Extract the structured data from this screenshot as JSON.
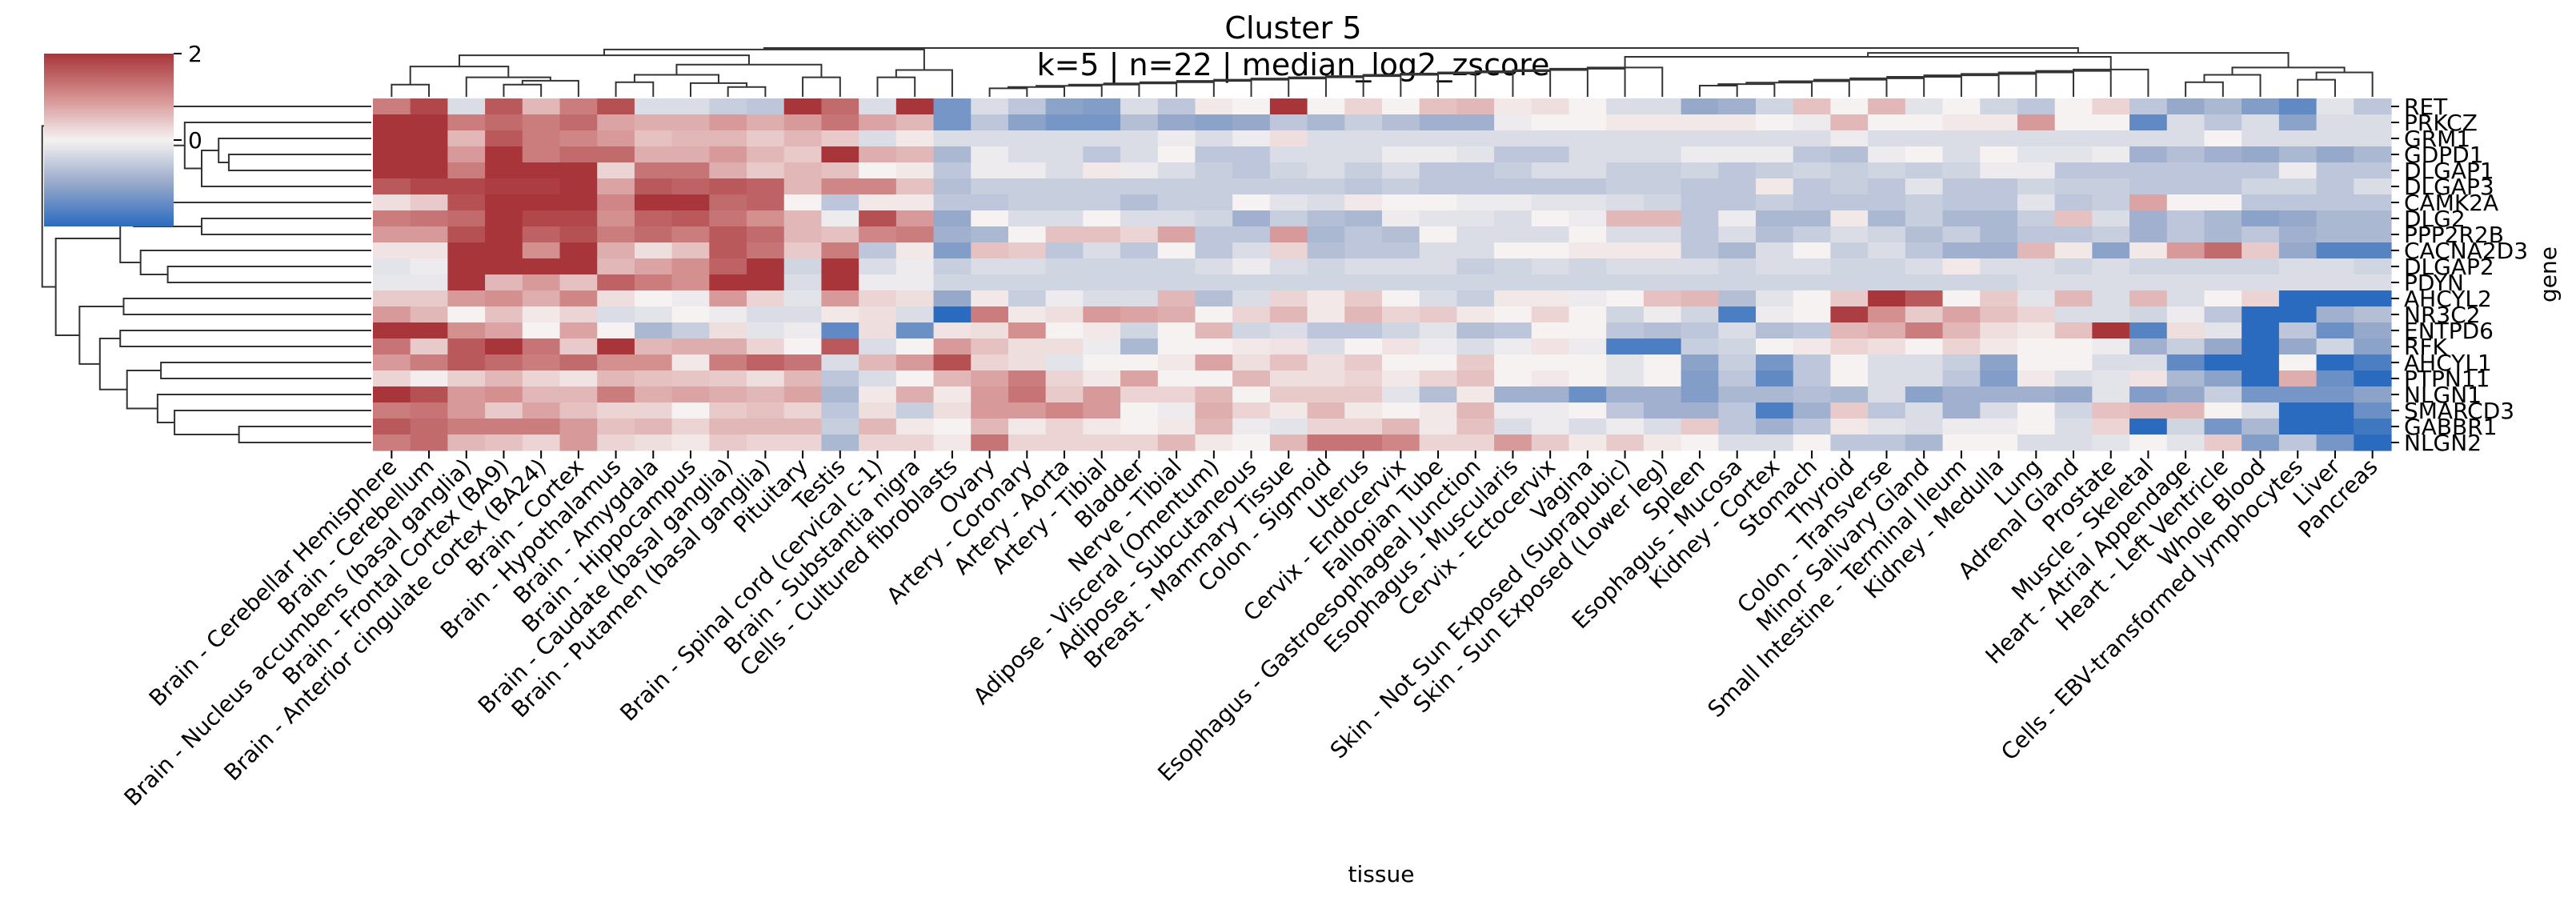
{
  "chart_data": {
    "type": "heatmap",
    "title": "Cluster 5",
    "subtitle": "k=5 | n=22 | median_log2_zscore",
    "xlabel": "tissue",
    "ylabel": "gene",
    "colorbar": {
      "range": [
        -2,
        2
      ],
      "ticks": [
        {
          "value": 2,
          "label": "2"
        },
        {
          "value": 0,
          "label": "0"
        }
      ],
      "colormap": "vlag",
      "low_color": "#2a6bbf",
      "mid_color": "#f6f2f2",
      "high_color": "#a8353a",
      "placement": "top-left"
    },
    "dendrograms": {
      "rows": true,
      "columns": true
    },
    "columns": [
      "Brain - Cerebellar Hemisphere",
      "Brain - Cerebellum",
      "Brain - Nucleus accumbens (basal ganglia)",
      "Brain - Frontal Cortex (BA9)",
      "Brain - Anterior cingulate cortex (BA24)",
      "Brain - Cortex",
      "Brain - Hypothalamus",
      "Brain - Amygdala",
      "Brain - Hippocampus",
      "Brain - Caudate (basal ganglia)",
      "Brain - Putamen (basal ganglia)",
      "Pituitary",
      "Testis",
      "Brain - Spinal cord (cervical c-1)",
      "Brain - Substantia nigra",
      "Cells - Cultured fibroblasts",
      "Ovary",
      "Artery - Coronary",
      "Artery - Aorta",
      "Artery - Tibial",
      "Bladder",
      "Nerve - Tibial",
      "Adipose - Visceral (Omentum)",
      "Adipose - Subcutaneous",
      "Breast - Mammary Tissue",
      "Colon - Sigmoid",
      "Uterus",
      "Cervix - Endocervix",
      "Fallopian Tube",
      "Esophagus - Gastroesophageal Junction",
      "Esophagus - Muscularis",
      "Cervix - Ectocervix",
      "Vagina",
      "Skin - Not Sun Exposed (Suprapubic)",
      "Skin - Sun Exposed (Lower leg)",
      "Spleen",
      "Esophagus - Mucosa",
      "Kidney - Cortex",
      "Stomach",
      "Thyroid",
      "Colon - Transverse",
      "Minor Salivary Gland",
      "Small Intestine - Terminal Ileum",
      "Kidney - Medulla",
      "Lung",
      "Adrenal Gland",
      "Prostate",
      "Muscle - Skeletal",
      "Heart - Atrial Appendage",
      "Heart - Left Ventricle",
      "Whole Blood",
      "Cells - EBV-transformed lymphocytes",
      "Liver",
      "Pancreas"
    ],
    "rows": [
      "RET",
      "PRKCZ",
      "GRM1",
      "GDPD1",
      "DLGAP1",
      "DLGAP3",
      "CAMK2A",
      "DLG2",
      "PPP2R2B",
      "CACNA2D3",
      "DLGAP2",
      "PDYN",
      "AHCYL2",
      "NR3C2",
      "ENTPD6",
      "RFK",
      "AHCYL1",
      "PTPN11",
      "NLGN1",
      "SMARCD3",
      "GABBR1",
      "NLGN2"
    ],
    "values": [
      [
        1.2,
        1.8,
        -0.3,
        1.6,
        0.6,
        1.2,
        1.7,
        -0.3,
        -0.3,
        -0.5,
        -0.6,
        2.0,
        1.4,
        -0.3,
        2.0,
        -1.3,
        -0.3,
        -0.6,
        -1.1,
        -1.2,
        -0.3,
        -0.6,
        0.1,
        0.0,
        2.0,
        0.0,
        0.3,
        0.0,
        0.5,
        0.6,
        0.1,
        0.2,
        0.0,
        -0.3,
        -0.3,
        -1.0,
        -0.9,
        -0.4,
        0.5,
        0.0,
        0.6,
        -0.2,
        0.0,
        -0.4,
        -0.6,
        0.0,
        0.3,
        -0.6,
        -1.0,
        -0.8,
        -1.2,
        -1.5,
        -0.2,
        -0.6
      ],
      [
        2.0,
        2.0,
        1.2,
        1.4,
        1.2,
        1.4,
        0.8,
        0.7,
        0.7,
        0.9,
        0.7,
        0.9,
        1.3,
        0.8,
        0.6,
        -1.3,
        -0.6,
        -1.1,
        -1.3,
        -1.3,
        -0.7,
        -1.0,
        -1.1,
        -1.0,
        -0.6,
        -0.8,
        -0.5,
        -0.7,
        -0.9,
        -0.9,
        -0.1,
        0.0,
        0.0,
        0.1,
        0.1,
        0.1,
        0.1,
        0.0,
        -0.1,
        0.6,
        0.0,
        0.0,
        0.1,
        0.1,
        0.9,
        0.0,
        0.0,
        -1.5,
        -0.3,
        -0.6,
        -0.3,
        -1.1,
        -0.3,
        -0.3
      ],
      [
        2.0,
        2.0,
        0.6,
        1.6,
        1.2,
        1.1,
        0.9,
        0.5,
        0.6,
        0.6,
        0.4,
        0.6,
        0.4,
        -0.3,
        0.1,
        -0.3,
        -0.3,
        -0.3,
        -0.3,
        -0.3,
        -0.3,
        -0.1,
        -0.3,
        -0.1,
        0.2,
        -0.3,
        -0.3,
        -0.3,
        -0.3,
        -0.3,
        -0.3,
        -0.3,
        -0.3,
        -0.3,
        -0.3,
        -0.3,
        -0.3,
        -0.3,
        -0.3,
        -0.1,
        -0.3,
        -0.3,
        -0.3,
        -0.3,
        -0.3,
        -0.3,
        -0.3,
        -0.3,
        -0.3,
        0.0,
        -0.3,
        -0.3,
        -0.3,
        -0.3
      ],
      [
        2.0,
        2.0,
        0.9,
        2.0,
        1.2,
        1.4,
        1.4,
        0.7,
        0.7,
        0.9,
        0.6,
        0.4,
        2.0,
        0.7,
        0.6,
        -0.8,
        -0.1,
        -0.3,
        -0.3,
        -0.6,
        -0.3,
        0.0,
        -0.6,
        -0.6,
        -0.3,
        -0.3,
        -0.3,
        -0.1,
        -0.1,
        -0.2,
        -0.6,
        -0.6,
        -0.3,
        -0.3,
        -0.3,
        -0.1,
        -0.1,
        -0.1,
        -0.6,
        -0.7,
        -0.1,
        0.0,
        -0.3,
        0.0,
        -0.2,
        -0.2,
        -0.1,
        -0.9,
        -0.7,
        -0.9,
        -1.0,
        -0.8,
        -1.0,
        -0.8
      ],
      [
        2.0,
        2.0,
        1.2,
        2.0,
        2.0,
        2.0,
        0.3,
        1.3,
        1.3,
        0.7,
        0.4,
        0.6,
        0.5,
        0.0,
        0.1,
        -0.6,
        -0.1,
        -0.1,
        -0.3,
        0.1,
        -0.1,
        -0.3,
        -0.5,
        -0.6,
        -0.4,
        -0.3,
        -0.5,
        -0.3,
        -0.6,
        -0.6,
        -0.5,
        -0.3,
        -0.3,
        -0.5,
        -0.5,
        -0.4,
        -0.6,
        -0.5,
        -0.4,
        -0.5,
        -0.4,
        -0.5,
        -0.4,
        -0.1,
        -0.1,
        -0.6,
        -0.6,
        -0.6,
        -0.6,
        -0.6,
        -0.6,
        -0.1,
        -0.6,
        -0.6
      ],
      [
        1.6,
        1.8,
        1.8,
        1.9,
        1.9,
        2.0,
        0.8,
        1.6,
        1.5,
        1.6,
        1.5,
        0.6,
        1.1,
        1.1,
        0.5,
        -0.7,
        -0.5,
        -0.5,
        -0.5,
        -0.5,
        -0.5,
        -0.5,
        -0.5,
        -0.5,
        -0.5,
        -0.5,
        -0.6,
        -0.5,
        -0.6,
        -0.6,
        -0.6,
        -0.6,
        -0.6,
        -0.5,
        -0.5,
        -0.6,
        -0.6,
        0.1,
        -0.6,
        -0.5,
        -0.6,
        -0.2,
        -0.6,
        -0.6,
        -0.4,
        -0.5,
        -0.5,
        -0.6,
        -0.6,
        -0.6,
        -0.4,
        -0.4,
        -0.6,
        -0.3
      ],
      [
        0.2,
        0.4,
        1.7,
        2.0,
        2.0,
        2.0,
        1.1,
        2.0,
        2.0,
        1.4,
        1.5,
        0.0,
        -0.6,
        0.1,
        0.1,
        -0.6,
        -0.6,
        -0.5,
        -0.5,
        -0.5,
        -0.7,
        -0.5,
        -0.5,
        0.0,
        -0.2,
        -0.3,
        0.1,
        0.0,
        0.0,
        -0.1,
        -0.1,
        -0.2,
        -0.2,
        -0.3,
        -0.4,
        -0.6,
        -0.6,
        -0.5,
        -0.6,
        -0.6,
        -0.6,
        -0.5,
        -0.6,
        -0.6,
        -0.2,
        -0.6,
        -0.5,
        0.8,
        0.0,
        0.0,
        -0.6,
        -0.6,
        -0.6,
        -0.6
      ],
      [
        1.2,
        1.3,
        1.4,
        2.0,
        1.8,
        1.8,
        1.0,
        1.5,
        1.6,
        1.3,
        1.0,
        0.6,
        -0.1,
        1.7,
        0.9,
        -1.0,
        0.0,
        -0.3,
        -0.3,
        0.0,
        -0.3,
        -0.3,
        -0.4,
        -0.9,
        -0.5,
        -0.7,
        -0.8,
        -0.1,
        -0.2,
        -0.2,
        -0.3,
        0.0,
        -0.1,
        0.6,
        0.6,
        -0.6,
        -0.1,
        -0.8,
        -0.8,
        0.1,
        -0.8,
        -0.5,
        -0.8,
        -0.8,
        -0.5,
        0.5,
        -0.3,
        -0.9,
        -0.6,
        -0.8,
        -1.1,
        -1.0,
        -0.8,
        -0.8
      ],
      [
        0.9,
        0.9,
        1.7,
        2.0,
        1.5,
        1.7,
        1.2,
        1.4,
        1.2,
        1.6,
        1.4,
        0.6,
        0.5,
        1.1,
        1.2,
        -0.9,
        -0.8,
        0.0,
        0.5,
        0.5,
        0.3,
        0.8,
        -0.6,
        -0.6,
        0.9,
        -0.8,
        -0.6,
        -0.7,
        0.0,
        -0.3,
        -0.3,
        -0.3,
        0.0,
        -0.3,
        -0.3,
        -0.6,
        -0.3,
        -0.7,
        -0.5,
        -0.3,
        -0.4,
        -0.7,
        -0.5,
        -0.8,
        -0.6,
        -0.6,
        -0.5,
        -0.9,
        -0.6,
        -0.8,
        -0.6,
        -0.9,
        -0.8,
        -0.8
      ],
      [
        0.15,
        0.15,
        2.0,
        2.0,
        1.0,
        2.0,
        0.7,
        0.2,
        0.5,
        1.6,
        1.3,
        0.4,
        1.2,
        -0.6,
        0.1,
        -1.2,
        0.5,
        0.4,
        -0.6,
        -0.3,
        -0.6,
        0.0,
        -0.6,
        -0.3,
        0.3,
        -0.7,
        -0.6,
        -0.6,
        -0.3,
        -0.3,
        0.0,
        0.0,
        0.1,
        0.1,
        0.1,
        -0.6,
        -0.8,
        -0.3,
        0.0,
        -0.5,
        -0.3,
        -0.6,
        -0.9,
        -0.9,
        0.6,
        0.1,
        -1.1,
        0.1,
        0.9,
        1.4,
        0.4,
        -1.0,
        -1.6,
        -1.6
      ],
      [
        -0.2,
        -0.1,
        2.0,
        2.0,
        2.0,
        2.0,
        0.6,
        0.8,
        1.0,
        1.5,
        2.0,
        -0.4,
        2.0,
        -0.3,
        -0.1,
        -0.5,
        -0.3,
        -0.3,
        -0.4,
        -0.4,
        -0.4,
        -0.4,
        -0.3,
        -0.1,
        -0.3,
        -0.4,
        -0.3,
        -0.3,
        -0.3,
        -0.5,
        -0.4,
        -0.3,
        -0.4,
        -0.3,
        -0.3,
        -0.3,
        -0.4,
        -0.3,
        -0.3,
        -0.4,
        -0.4,
        -0.3,
        0.1,
        -0.3,
        -0.3,
        -0.4,
        -0.3,
        -0.4,
        -0.4,
        -0.4,
        -0.4,
        -0.3,
        -0.3,
        -0.4
      ],
      [
        -0.15,
        -0.15,
        2.0,
        0.6,
        0.9,
        0.5,
        1.5,
        1.2,
        1.0,
        2.0,
        2.0,
        -0.3,
        2.0,
        -0.1,
        -0.1,
        -0.4,
        -0.4,
        -0.4,
        -0.4,
        -0.4,
        -0.4,
        -0.4,
        -0.4,
        -0.4,
        -0.4,
        -0.4,
        -0.4,
        -0.4,
        -0.4,
        -0.4,
        -0.4,
        -0.4,
        -0.4,
        -0.4,
        -0.4,
        -0.4,
        -0.4,
        -0.4,
        -0.4,
        -0.4,
        -0.4,
        -0.4,
        -0.4,
        -0.4,
        -0.3,
        -0.3,
        -0.3,
        -0.3,
        -0.3,
        -0.3,
        -0.3,
        -0.3,
        -0.3,
        -0.3
      ],
      [
        0.4,
        0.4,
        0.9,
        1.0,
        0.7,
        1.1,
        0.2,
        0.0,
        -0.1,
        0.9,
        0.3,
        -0.2,
        0.9,
        0.3,
        0.2,
        -1.0,
        0.1,
        -0.5,
        -0.1,
        -0.3,
        -0.3,
        0.6,
        -0.7,
        -0.3,
        0.3,
        0.1,
        0.4,
        0.0,
        -0.3,
        -0.5,
        0.1,
        0.1,
        -0.1,
        0.0,
        0.5,
        0.6,
        -0.7,
        -0.2,
        0.0,
        0.4,
        2.0,
        1.6,
        0.0,
        0.4,
        -0.2,
        0.6,
        -0.3,
        0.6,
        -0.3,
        0.0,
        0.3,
        -2.0,
        -2.0,
        -2.0
      ],
      [
        0.9,
        0.6,
        0.0,
        0.5,
        0.1,
        0.3,
        -0.3,
        -0.2,
        0.0,
        -0.1,
        -0.3,
        -0.3,
        0.1,
        0.2,
        -0.3,
        -2.0,
        1.2,
        0.1,
        0.2,
        0.9,
        0.8,
        0.7,
        0.0,
        0.3,
        0.6,
        0.1,
        0.6,
        0.3,
        0.4,
        0.1,
        0.0,
        0.3,
        0.0,
        -0.4,
        -0.1,
        -0.4,
        -1.7,
        -0.1,
        0.0,
        1.9,
        1.0,
        0.4,
        0.8,
        0.5,
        0.3,
        -0.3,
        -0.3,
        -0.4,
        -0.1,
        -0.6,
        -2.0,
        -2.0,
        -0.9,
        -0.7
      ],
      [
        2.0,
        2.0,
        1.0,
        0.8,
        0.0,
        0.8,
        0.0,
        -0.8,
        -0.5,
        0.2,
        -0.2,
        -0.1,
        -1.5,
        0.2,
        -1.4,
        0.15,
        0.2,
        1.0,
        0.0,
        0.1,
        -0.4,
        0.0,
        0.6,
        -0.4,
        -0.3,
        -0.6,
        -0.6,
        -0.4,
        -0.2,
        -0.7,
        -0.6,
        0.0,
        0.0,
        -0.6,
        -0.7,
        -0.6,
        -0.3,
        -0.7,
        -0.6,
        0.6,
        0.7,
        1.2,
        0.6,
        0.2,
        0.1,
        0.5,
        2.0,
        -1.6,
        0.2,
        -0.2,
        -2.0,
        -0.6,
        -1.4,
        -1.0
      ],
      [
        1.3,
        0.4,
        1.6,
        2.0,
        1.3,
        0.4,
        2.0,
        0.6,
        0.7,
        0.7,
        0.3,
        0.0,
        1.6,
        -0.3,
        0.0,
        0.9,
        0.5,
        0.2,
        0.2,
        -0.1,
        -0.8,
        0.0,
        0.0,
        0.1,
        0.15,
        -0.3,
        0.0,
        0.15,
        -0.1,
        -0.3,
        -0.1,
        0.15,
        -0.1,
        -1.7,
        -1.7,
        -0.5,
        -0.4,
        0.0,
        0.1,
        0.3,
        0.2,
        0.0,
        0.3,
        0.1,
        0.0,
        0.0,
        -0.1,
        -0.9,
        -0.5,
        -1.0,
        -2.0,
        -1.0,
        -0.4,
        -1.1
      ],
      [
        0.9,
        1.2,
        1.6,
        1.4,
        1.2,
        1.4,
        1.0,
        1.0,
        0.1,
        1.2,
        1.5,
        1.3,
        -0.3,
        0.6,
        0.9,
        1.7,
        0.3,
        0.2,
        -0.2,
        0.0,
        0.0,
        0.1,
        0.8,
        0.2,
        0.5,
        0.2,
        0.4,
        0.0,
        0.0,
        0.4,
        0.0,
        0.0,
        0.0,
        -0.2,
        0.0,
        -1.1,
        -0.5,
        -1.3,
        -0.6,
        0.0,
        -0.3,
        -0.3,
        -0.5,
        -1.1,
        0.0,
        0.0,
        -0.3,
        -0.3,
        -1.5,
        -2.0,
        -2.0,
        0.0,
        -2.0,
        -1.7
      ],
      [
        0.3,
        0.05,
        0.35,
        0.6,
        0.3,
        0.15,
        0.6,
        0.5,
        0.45,
        0.4,
        0.2,
        0.6,
        -0.6,
        -0.3,
        0.0,
        0.6,
        0.8,
        1.2,
        0.3,
        0.1,
        0.8,
        0.0,
        0.0,
        0.6,
        0.2,
        0.2,
        0.3,
        0.1,
        0.3,
        0.5,
        0.0,
        0.1,
        0.0,
        -0.2,
        0.0,
        -1.2,
        -0.6,
        -1.5,
        -0.6,
        0.0,
        -0.3,
        -0.3,
        -0.6,
        -1.2,
        0.1,
        -0.3,
        -0.2,
        0.15,
        -0.8,
        -1.1,
        -2.0,
        0.7,
        -1.4,
        -2.0
      ],
      [
        2.0,
        1.7,
        0.9,
        1.0,
        0.6,
        0.6,
        1.2,
        0.7,
        0.8,
        0.7,
        0.6,
        0.8,
        -0.8,
        0.1,
        0.7,
        0.1,
        0.9,
        1.3,
        0.4,
        0.9,
        0.3,
        0.3,
        0.6,
        0.0,
        0.4,
        0.4,
        0.4,
        -0.2,
        -0.7,
        0.1,
        -0.9,
        -0.9,
        -1.4,
        -0.9,
        -0.9,
        -1.2,
        -0.8,
        -0.8,
        -0.7,
        -0.8,
        -0.3,
        -1.1,
        -0.9,
        -0.9,
        -0.9,
        -1.0,
        -0.2,
        -1.2,
        -1.0,
        -0.5,
        -1.3,
        -1.3,
        -1.3,
        -1.1
      ],
      [
        1.2,
        1.3,
        0.9,
        0.4,
        0.8,
        0.5,
        0.3,
        0.3,
        0.0,
        0.4,
        0.5,
        0.3,
        -0.6,
        0.2,
        -0.5,
        0.2,
        0.9,
        0.9,
        1.1,
        0.9,
        0.0,
        -0.1,
        0.7,
        0.3,
        0.1,
        0.6,
        0.1,
        0.0,
        0.1,
        0.6,
        -0.1,
        -0.1,
        0.0,
        -0.6,
        -0.9,
        -0.9,
        -0.6,
        -1.7,
        -0.9,
        0.4,
        -0.6,
        -0.3,
        -0.9,
        -0.3,
        0.0,
        -0.4,
        0.5,
        0.6,
        0.6,
        0.0,
        -0.3,
        -2.0,
        -2.0,
        -1.4
      ],
      [
        1.6,
        1.4,
        1.2,
        1.2,
        1.2,
        0.9,
        0.5,
        0.6,
        0.3,
        0.6,
        0.6,
        0.6,
        -0.5,
        0.6,
        0.1,
        0.0,
        0.6,
        0.1,
        0.3,
        0.1,
        0.0,
        0.1,
        0.6,
        -0.1,
        -0.2,
        0.3,
        0.3,
        0.6,
        0.1,
        0.5,
        -0.3,
        -0.1,
        -0.3,
        -0.1,
        -0.3,
        0.4,
        -0.6,
        -0.9,
        -0.6,
        0.1,
        -0.2,
        -0.3,
        -0.1,
        -0.1,
        0.0,
        -0.3,
        0.3,
        -2.0,
        -0.4,
        -1.3,
        -0.8,
        -2.0,
        -2.0,
        -1.8
      ],
      [
        1.2,
        1.4,
        0.6,
        0.5,
        0.3,
        0.9,
        0.3,
        0.2,
        0.1,
        0.4,
        0.3,
        0.3,
        -0.8,
        0.3,
        0.3,
        0.1,
        1.3,
        0.3,
        0.3,
        0.3,
        0.3,
        0.6,
        0.1,
        0.0,
        0.6,
        1.3,
        1.3,
        1.1,
        0.3,
        0.3,
        0.9,
        0.4,
        0.1,
        0.4,
        0.1,
        0.0,
        -0.3,
        -0.3,
        0.0,
        -0.6,
        -0.6,
        -0.8,
        0.0,
        0.0,
        -0.3,
        -0.3,
        -0.2,
        0.0,
        -0.2,
        0.4,
        -1.2,
        -0.6,
        -1.3,
        -2.0
      ]
    ],
    "row_dendrogram_order": [
      "RET",
      "PRKCZ",
      "GRM1",
      "GDPD1",
      "DLGAP1",
      "DLGAP3",
      "CAMK2A",
      "DLG2",
      "PPP2R2B",
      "CACNA2D3",
      "DLGAP2",
      "PDYN",
      "AHCYL2",
      "NR3C2",
      "ENTPD6",
      "RFK",
      "AHCYL1",
      "PTPN11",
      "NLGN1",
      "SMARCD3",
      "GABBR1",
      "NLGN2"
    ]
  }
}
